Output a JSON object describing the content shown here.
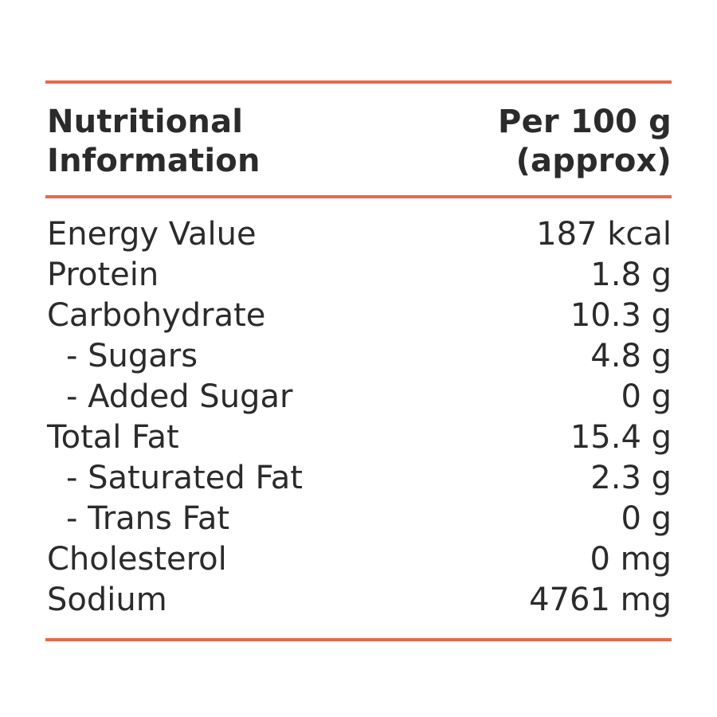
{
  "header": {
    "title_line1": "Nutritional",
    "title_line2": "Information",
    "basis_line1": "Per 100 g",
    "basis_line2": "(approx)"
  },
  "rows": [
    {
      "label": "Energy Value",
      "value": "187 kcal",
      "sub": false
    },
    {
      "label": "Protein",
      "value": "1.8 g",
      "sub": false
    },
    {
      "label": "Carbohydrate",
      "value": "10.3 g",
      "sub": false
    },
    {
      "label": "- Sugars",
      "value": "4.8 g",
      "sub": true
    },
    {
      "label": "- Added Sugar",
      "value": "0 g",
      "sub": true
    },
    {
      "label": "Total Fat",
      "value": "15.4 g",
      "sub": false
    },
    {
      "label": "- Saturated Fat",
      "value": "2.3 g",
      "sub": true
    },
    {
      "label": "- Trans Fat",
      "value": "0 g",
      "sub": true
    },
    {
      "label": "Cholesterol",
      "value": "0 mg",
      "sub": false
    },
    {
      "label": "Sodium",
      "value": "4761 mg",
      "sub": false
    }
  ],
  "colors": {
    "rule": "#e8684a",
    "text": "#2b2b2b"
  }
}
